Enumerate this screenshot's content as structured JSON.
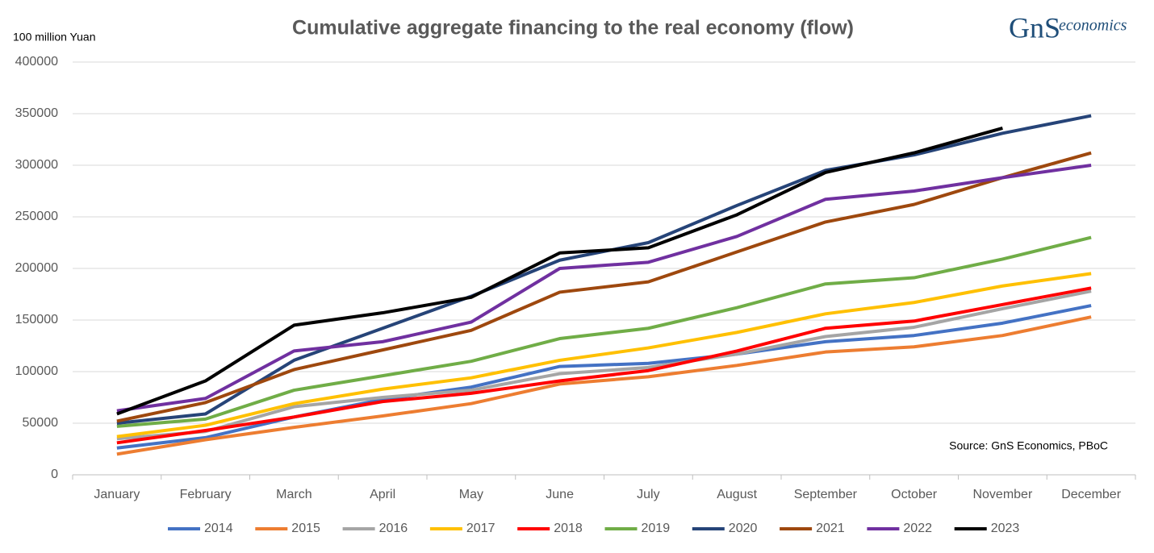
{
  "chart_data": {
    "type": "line",
    "title": "Cumulative aggregate financing to the real economy (flow)",
    "y_axis_label": "100 million Yuan",
    "annotation": "Source: GnS Economics, PBoC",
    "logo_mark": "GnS",
    "logo_text": "economics",
    "categories": [
      "January",
      "February",
      "March",
      "April",
      "May",
      "June",
      "July",
      "August",
      "September",
      "October",
      "November",
      "December"
    ],
    "ylim": [
      0,
      400000
    ],
    "yticks": [
      0,
      50000,
      100000,
      150000,
      200000,
      250000,
      300000,
      350000,
      400000
    ],
    "grid": true,
    "legend": "bottom",
    "series": [
      {
        "name": "2014",
        "color": "#4472c4",
        "values": [
          26000,
          36000,
          56000,
          73000,
          85000,
          105000,
          108000,
          117000,
          129000,
          135000,
          147000,
          164000
        ]
      },
      {
        "name": "2015",
        "color": "#ed7d31",
        "values": [
          20000,
          34000,
          46000,
          57000,
          69000,
          88000,
          95000,
          106000,
          119000,
          124000,
          135000,
          153000
        ]
      },
      {
        "name": "2016",
        "color": "#a5a5a5",
        "values": [
          35000,
          42000,
          66000,
          75000,
          82000,
          98000,
          104000,
          117000,
          134000,
          143000,
          161000,
          178000
        ]
      },
      {
        "name": "2017",
        "color": "#ffc000",
        "values": [
          37000,
          48000,
          69000,
          83000,
          94000,
          111000,
          123000,
          138000,
          156000,
          167000,
          183000,
          195000
        ]
      },
      {
        "name": "2018",
        "color": "#ff0000",
        "values": [
          31000,
          43000,
          56000,
          71000,
          79000,
          91000,
          101000,
          120000,
          142000,
          149000,
          165000,
          181000
        ]
      },
      {
        "name": "2019",
        "color": "#70ad47",
        "values": [
          47000,
          54000,
          82000,
          96000,
          110000,
          132000,
          142000,
          162000,
          185000,
          191000,
          209000,
          230000
        ]
      },
      {
        "name": "2020",
        "color": "#264478",
        "values": [
          50000,
          59000,
          111000,
          142000,
          173000,
          208000,
          225000,
          261000,
          295000,
          310000,
          331000,
          348000
        ]
      },
      {
        "name": "2021",
        "color": "#9e480e",
        "values": [
          52000,
          70000,
          102000,
          121000,
          140000,
          177000,
          187000,
          216000,
          245000,
          262000,
          288000,
          312000
        ]
      },
      {
        "name": "2022",
        "color": "#7030a0",
        "values": [
          62000,
          74000,
          120000,
          129000,
          148000,
          200000,
          206000,
          231000,
          267000,
          275000,
          288000,
          300000
        ]
      },
      {
        "name": "2023",
        "color": "#000000",
        "values": [
          59000,
          91000,
          145000,
          157000,
          172000,
          215000,
          220000,
          252000,
          293000,
          312000,
          336000,
          null
        ]
      }
    ]
  }
}
